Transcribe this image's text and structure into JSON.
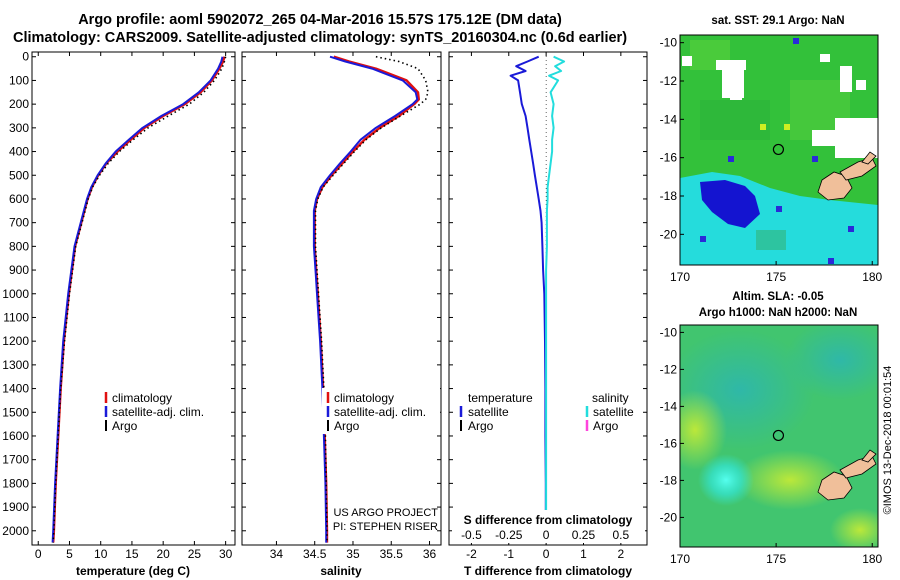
{
  "header": {
    "line1": "Argo profile: aoml 5902072_265 04-Mar-2016 15.57S 175.12E (DM data)",
    "line2": "Climatology: CARS2009. Satellite-adjusted climatology: synTS_20160304.nc (0.6d earlier)"
  },
  "colors": {
    "climatology": "#e01010",
    "satellite": "#1a1ad8",
    "argo": "#000000",
    "satellite_salinity": "#22dddd",
    "argo_salinity": "#ff44dd"
  },
  "chart_data": [
    {
      "id": "temperature",
      "type": "line",
      "xlabel": "temperature (deg C)",
      "ylabel": "",
      "xlim": [
        -1,
        31.5
      ],
      "ylim": [
        2060,
        -20
      ],
      "xticks": [
        "0",
        "5",
        "10",
        "15",
        "20",
        "25",
        "30"
      ],
      "xtick_values": [
        0,
        5,
        10,
        15,
        20,
        25,
        30
      ],
      "yticks": [
        "0",
        "100",
        "200",
        "300",
        "400",
        "500",
        "600",
        "700",
        "800",
        "900",
        "1000",
        "1100",
        "1200",
        "1300",
        "1400",
        "1500",
        "1600",
        "1700",
        "1800",
        "1900",
        "2000"
      ],
      "ytick_values": [
        0,
        100,
        200,
        300,
        400,
        500,
        600,
        700,
        800,
        900,
        1000,
        1100,
        1200,
        1300,
        1400,
        1500,
        1600,
        1700,
        1800,
        1900,
        2000
      ],
      "depth": [
        0,
        20,
        50,
        100,
        150,
        200,
        250,
        300,
        350,
        400,
        450,
        500,
        550,
        600,
        700,
        800,
        1000,
        1200,
        1400,
        1600,
        1800,
        2000,
        2050
      ],
      "series": [
        {
          "name": "climatology",
          "values": [
            29.8,
            29.6,
            29.0,
            27.8,
            26.0,
            23.5,
            20.0,
            17.0,
            14.8,
            12.7,
            10.9,
            9.6,
            8.6,
            7.9,
            6.9,
            5.9,
            4.9,
            4.1,
            3.6,
            3.2,
            2.8,
            2.5,
            2.4
          ]
        },
        {
          "name": "satellite-adj. clim.",
          "values": [
            29.5,
            29.3,
            28.8,
            27.6,
            25.7,
            23.2,
            19.7,
            16.7,
            14.5,
            12.4,
            10.8,
            9.5,
            8.5,
            7.8,
            6.8,
            5.8,
            4.8,
            4.0,
            3.5,
            3.1,
            2.7,
            2.4,
            2.3
          ]
        },
        {
          "name": "Argo",
          "values": [
            30.0,
            29.8,
            29.4,
            28.2,
            26.5,
            24.2,
            20.8,
            17.6,
            15.2,
            13.0,
            11.2,
            9.8,
            8.7,
            8.0,
            7.0,
            6.0,
            5.0,
            4.2,
            3.6,
            3.2,
            2.8,
            2.5,
            2.4
          ]
        }
      ],
      "legend": [
        "climatology",
        "satellite-adj. clim.",
        "Argo"
      ]
    },
    {
      "id": "salinity",
      "type": "line",
      "xlabel": "salinity",
      "xlim": [
        33.55,
        36.15
      ],
      "ylim": [
        2060,
        -20
      ],
      "xticks": [
        "34",
        "34.5",
        "35",
        "35.5",
        "36"
      ],
      "xtick_values": [
        34,
        34.5,
        35,
        35.5,
        36
      ],
      "depth": [
        0,
        20,
        50,
        100,
        150,
        180,
        200,
        250,
        300,
        350,
        400,
        450,
        500,
        550,
        600,
        650,
        700,
        800,
        900,
        1000,
        1200,
        1400,
        1600,
        1800,
        2000,
        2050
      ],
      "series": [
        {
          "name": "climatology",
          "values": [
            34.75,
            34.95,
            35.3,
            35.7,
            35.85,
            35.86,
            35.8,
            35.6,
            35.35,
            35.15,
            35.0,
            34.86,
            34.72,
            34.6,
            34.53,
            34.5,
            34.5,
            34.5,
            34.52,
            34.54,
            34.58,
            34.61,
            34.63,
            34.65,
            34.66,
            34.66
          ]
        },
        {
          "name": "satellite-adj. clim.",
          "values": [
            34.7,
            34.9,
            35.25,
            35.65,
            35.82,
            35.84,
            35.78,
            35.55,
            35.3,
            35.1,
            34.97,
            34.83,
            34.7,
            34.58,
            34.52,
            34.49,
            34.49,
            34.49,
            34.51,
            34.53,
            34.57,
            34.6,
            34.62,
            34.64,
            34.65,
            34.65
          ]
        },
        {
          "name": "Argo",
          "values": [
            35.3,
            35.6,
            35.85,
            35.95,
            35.98,
            35.95,
            35.88,
            35.62,
            35.37,
            35.17,
            35.02,
            34.88,
            34.74,
            34.61,
            34.54,
            34.51,
            34.51,
            34.51,
            34.53,
            34.55,
            34.59,
            34.62,
            34.64,
            34.65,
            34.66,
            34.66
          ]
        }
      ],
      "legend": [
        "climatology",
        "satellite-adj. clim.",
        "Argo"
      ],
      "credit": [
        "US ARGO PROJECT",
        "PI: STEPHEN RISER"
      ]
    },
    {
      "id": "difference",
      "type": "line",
      "xlabel": "T difference from climatology",
      "xlabel2": "S difference from climatology",
      "xlim": [
        -2.6,
        2.7
      ],
      "ylim": [
        2060,
        -20
      ],
      "xticks": [
        "-2",
        "-1",
        "0",
        "1",
        "2"
      ],
      "xtick_values": [
        -2,
        -1,
        0,
        1,
        2
      ],
      "xticks2": [
        "-0.5",
        "-0.25",
        "0",
        "0.25",
        "0.5"
      ],
      "xtick2_values": [
        -0.5,
        -0.25,
        0,
        0.25,
        0.5
      ],
      "depth": [
        0,
        20,
        40,
        60,
        80,
        100,
        150,
        200,
        250,
        300,
        350,
        400,
        450,
        500,
        550,
        600,
        650,
        700,
        800,
        900,
        1000,
        1200,
        1400,
        1600,
        1800,
        2000,
        2050
      ],
      "series": [
        {
          "name": "temperature satellite",
          "values": [
            -0.2,
            -0.5,
            -0.8,
            -0.55,
            -0.95,
            -0.75,
            -0.7,
            -0.65,
            -0.55,
            -0.5,
            -0.45,
            -0.4,
            -0.35,
            -0.3,
            -0.25,
            -0.2,
            -0.15,
            -0.12,
            -0.1,
            -0.08,
            -0.05,
            -0.03,
            -0.02,
            -0.02,
            -0.01,
            -0.01,
            -0.01
          ]
        },
        {
          "name": "salinity satellite",
          "values": [
            0.05,
            0.12,
            0.06,
            0.1,
            0.02,
            0.08,
            0.03,
            0.05,
            0.04,
            0.05,
            0.04,
            0.04,
            0.03,
            0.02,
            0.01,
            0.01,
            0.005,
            0.005,
            0.005,
            0.0,
            0.0,
            0.0,
            0.0,
            0.0,
            0.0,
            0.0,
            0.0
          ]
        }
      ],
      "legend_left": {
        "title": "temperature",
        "items": [
          "satellite",
          "Argo"
        ]
      },
      "legend_right": {
        "title": "salinity",
        "items": [
          "satellite",
          "Argo"
        ]
      }
    },
    {
      "id": "sst_map",
      "type": "heatmap",
      "title": "sat. SST: 29.1 Argo: NaN",
      "xlim": [
        170,
        180.3
      ],
      "ylim": [
        -21.6,
        -9.6
      ],
      "xticks": [
        "170",
        "175",
        "180"
      ],
      "xtick_values": [
        170,
        175,
        180
      ],
      "yticks": [
        "-10",
        "-12",
        "-14",
        "-16",
        "-18",
        "-20"
      ],
      "ytick_values": [
        -10,
        -12,
        -14,
        -16,
        -18,
        -20
      ],
      "marker": [
        175.12,
        -15.57
      ]
    },
    {
      "id": "sla_map",
      "type": "heatmap",
      "title": "Altim. SLA: -0.05",
      "subtitle": "Argo h1000: NaN h2000: NaN",
      "xlim": [
        170,
        180.3
      ],
      "ylim": [
        -21.6,
        -9.6
      ],
      "xticks": [
        "170",
        "175",
        "180"
      ],
      "xtick_values": [
        170,
        175,
        180
      ],
      "yticks": [
        "-10",
        "-12",
        "-14",
        "-16",
        "-18",
        "-20"
      ],
      "ytick_values": [
        -10,
        -12,
        -14,
        -16,
        -18,
        -20
      ],
      "marker": [
        175.12,
        -15.57
      ]
    }
  ],
  "footer": {
    "stamp": "©IMOS 13-Dec-2018 00:01:54"
  }
}
